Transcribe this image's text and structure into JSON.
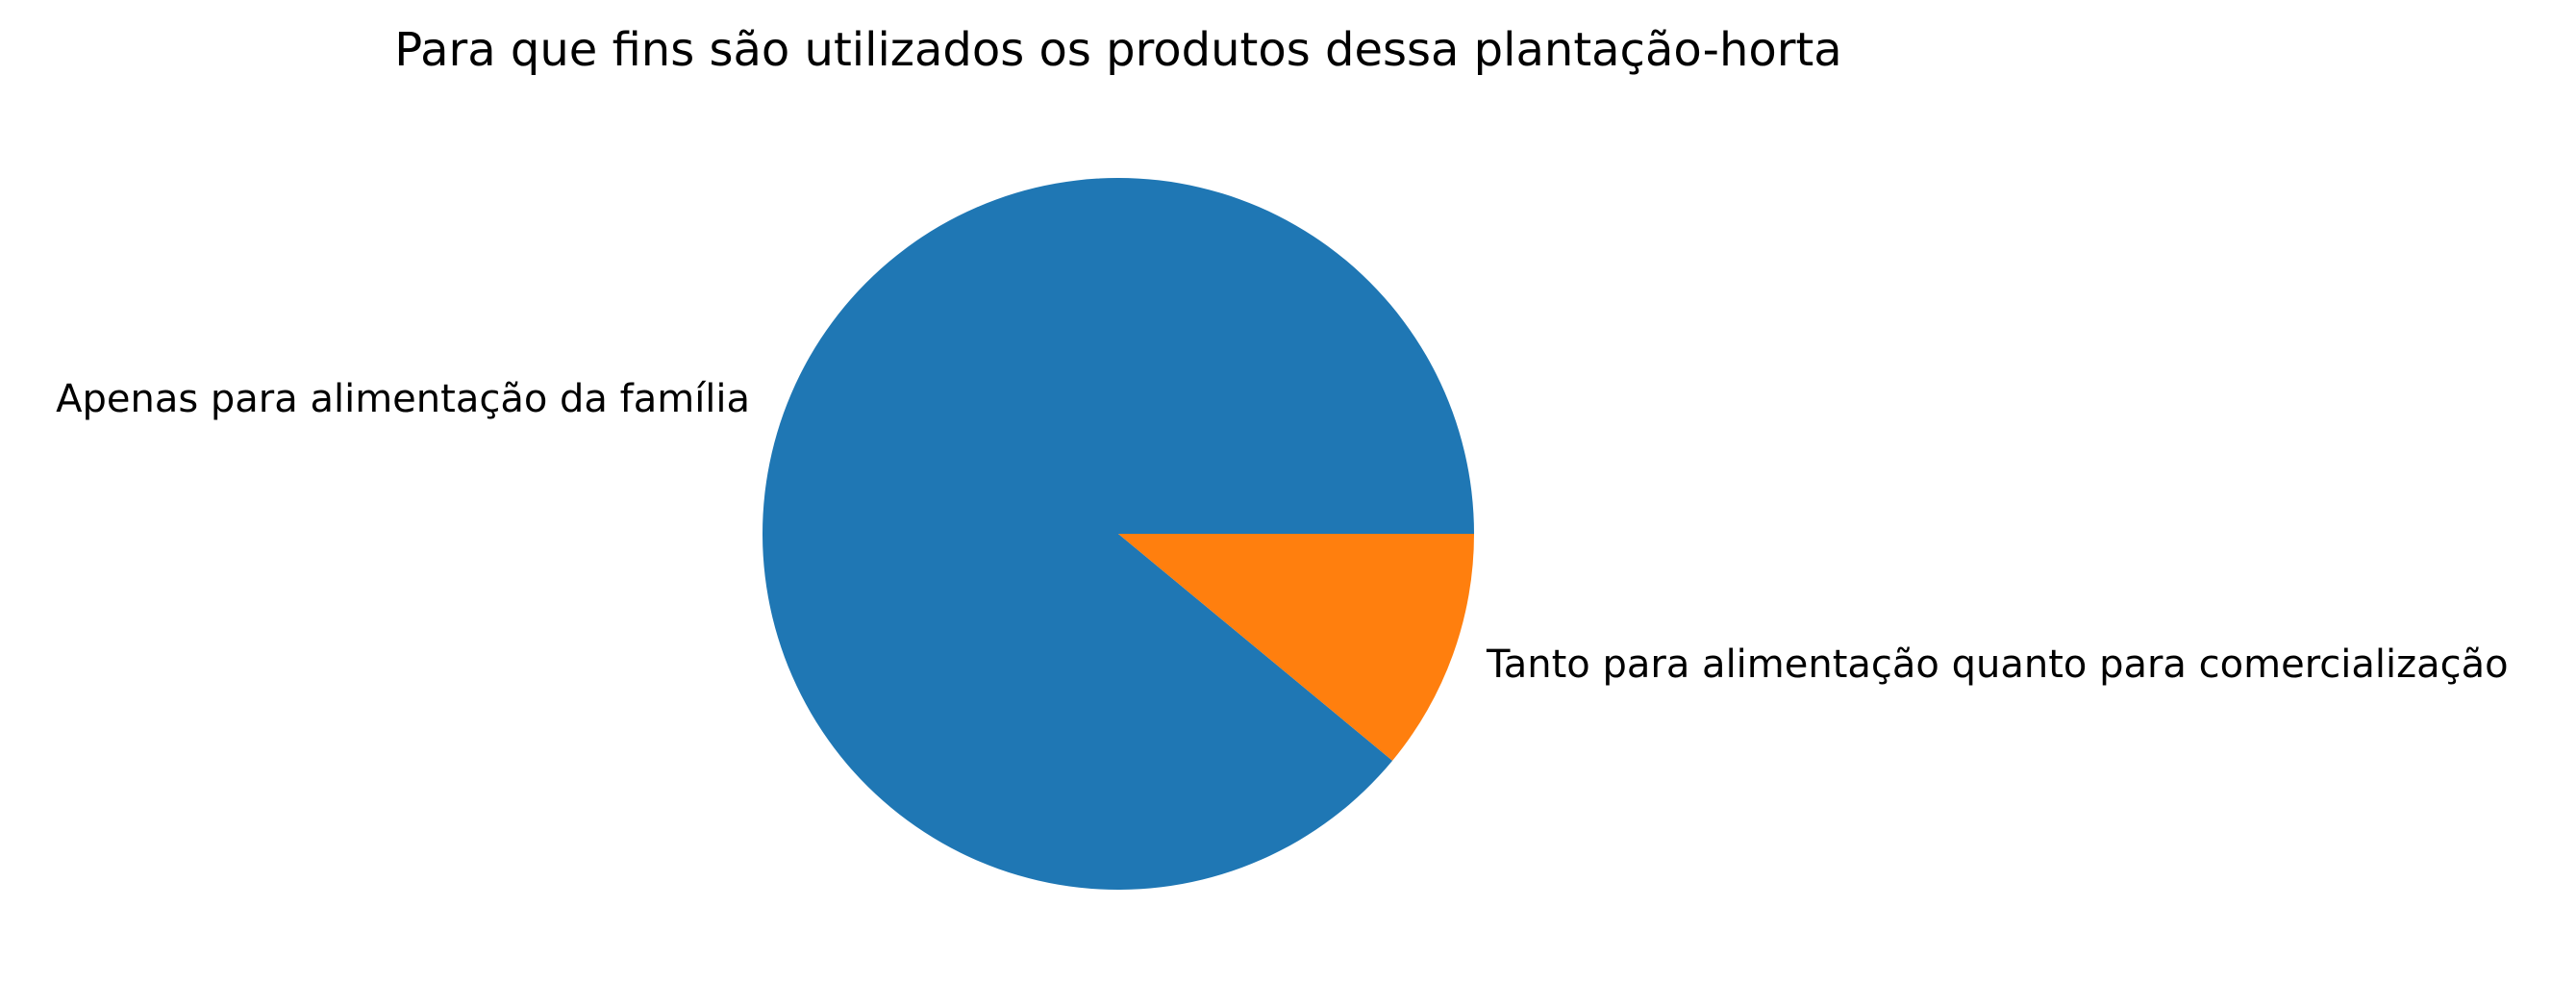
{
  "chart_data": {
    "type": "pie",
    "title": "Para que fins são utilizados os produtos dessa plantação-horta",
    "categories": [
      "Apenas para alimentação da família",
      "Tanto para alimentação quanto para comercialização"
    ],
    "values": [
      89,
      11
    ],
    "colors": [
      "#1f77b4",
      "#ff7f0e"
    ],
    "start_angle_deg": 0,
    "direction": "counterclockwise",
    "legend": "none"
  }
}
